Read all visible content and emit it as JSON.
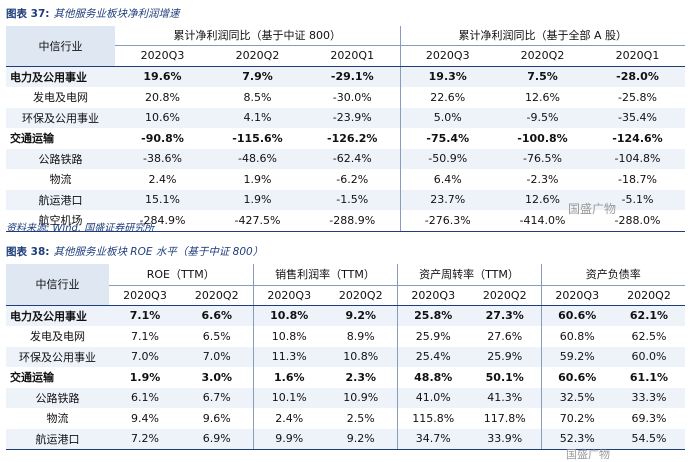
{
  "table1": {
    "caption_lead": "图表 37:",
    "caption_text": "其他服务业板块净利润增速",
    "corner": "中信行业",
    "groups": [
      "累计净利润同比（基于中证 800）",
      "累计净利润同比（基于全部 A 股）"
    ],
    "columns": [
      "2020Q3",
      "2020Q2",
      "2020Q1",
      "2020Q3",
      "2020Q2",
      "2020Q1"
    ],
    "rows": [
      {
        "label": "电力及公用事业",
        "bold": true,
        "values": [
          "19.6%",
          "7.9%",
          "-29.1%",
          "19.3%",
          "7.5%",
          "-28.0%"
        ]
      },
      {
        "label": "发电及电网",
        "bold": false,
        "values": [
          "20.8%",
          "8.5%",
          "-30.0%",
          "22.6%",
          "12.6%",
          "-25.8%"
        ]
      },
      {
        "label": "环保及公用事业",
        "bold": false,
        "values": [
          "10.6%",
          "4.1%",
          "-23.9%",
          "5.0%",
          "-9.5%",
          "-35.4%"
        ]
      },
      {
        "label": "交通运输",
        "bold": true,
        "values": [
          "-90.8%",
          "-115.6%",
          "-126.2%",
          "-75.4%",
          "-100.8%",
          "-124.6%"
        ]
      },
      {
        "label": "公路铁路",
        "bold": false,
        "values": [
          "-38.6%",
          "-48.6%",
          "-62.4%",
          "-50.9%",
          "-76.5%",
          "-104.8%"
        ]
      },
      {
        "label": "物流",
        "bold": false,
        "values": [
          "2.4%",
          "1.9%",
          "-6.2%",
          "6.4%",
          "-2.3%",
          "-18.7%"
        ]
      },
      {
        "label": "航运港口",
        "bold": false,
        "values": [
          "15.1%",
          "1.9%",
          "-1.5%",
          "23.7%",
          "12.6%",
          "-5.1%"
        ]
      },
      {
        "label": "航空机场",
        "bold": false,
        "values": [
          "-284.9%",
          "-427.5%",
          "-288.9%",
          "-276.3%",
          "-414.0%",
          "-288.0%"
        ]
      }
    ],
    "source": "资料来源: Wind, 国盛证券研究所"
  },
  "table2": {
    "caption_lead": "图表 38:",
    "caption_text": "其他服务业板块 ROE 水平（基于中证 800）",
    "corner": "中信行业",
    "groups": [
      "ROE（TTM）",
      "销售利润率（TTM）",
      "资产周转率（TTM）",
      "资产负债率"
    ],
    "columns": [
      "2020Q3",
      "2020Q2",
      "2020Q3",
      "2020Q2",
      "2020Q3",
      "2020Q2",
      "2020Q3",
      "2020Q2"
    ],
    "rows": [
      {
        "label": "电力及公用事业",
        "bold": true,
        "values": [
          "7.1%",
          "6.6%",
          "10.8%",
          "9.2%",
          "25.8%",
          "27.3%",
          "60.6%",
          "62.1%"
        ]
      },
      {
        "label": "发电及电网",
        "bold": false,
        "values": [
          "7.1%",
          "6.5%",
          "10.8%",
          "8.9%",
          "25.9%",
          "27.6%",
          "60.8%",
          "62.5%"
        ]
      },
      {
        "label": "环保及公用事业",
        "bold": false,
        "values": [
          "7.0%",
          "7.0%",
          "11.3%",
          "10.8%",
          "25.4%",
          "25.9%",
          "59.2%",
          "60.0%"
        ]
      },
      {
        "label": "交通运输",
        "bold": true,
        "values": [
          "1.9%",
          "3.0%",
          "1.6%",
          "2.3%",
          "48.8%",
          "50.1%",
          "60.6%",
          "61.1%"
        ]
      },
      {
        "label": "公路铁路",
        "bold": false,
        "values": [
          "6.1%",
          "6.7%",
          "10.1%",
          "10.9%",
          "41.0%",
          "41.3%",
          "32.5%",
          "33.3%"
        ]
      },
      {
        "label": "物流",
        "bold": false,
        "values": [
          "9.4%",
          "9.6%",
          "2.4%",
          "2.5%",
          "115.8%",
          "117.8%",
          "70.2%",
          "69.3%"
        ]
      },
      {
        "label": "航运港口",
        "bold": false,
        "values": [
          "7.2%",
          "6.9%",
          "9.9%",
          "9.2%",
          "34.7%",
          "33.9%",
          "52.3%",
          "54.5%"
        ]
      }
    ]
  },
  "watermark": "国盛广物"
}
